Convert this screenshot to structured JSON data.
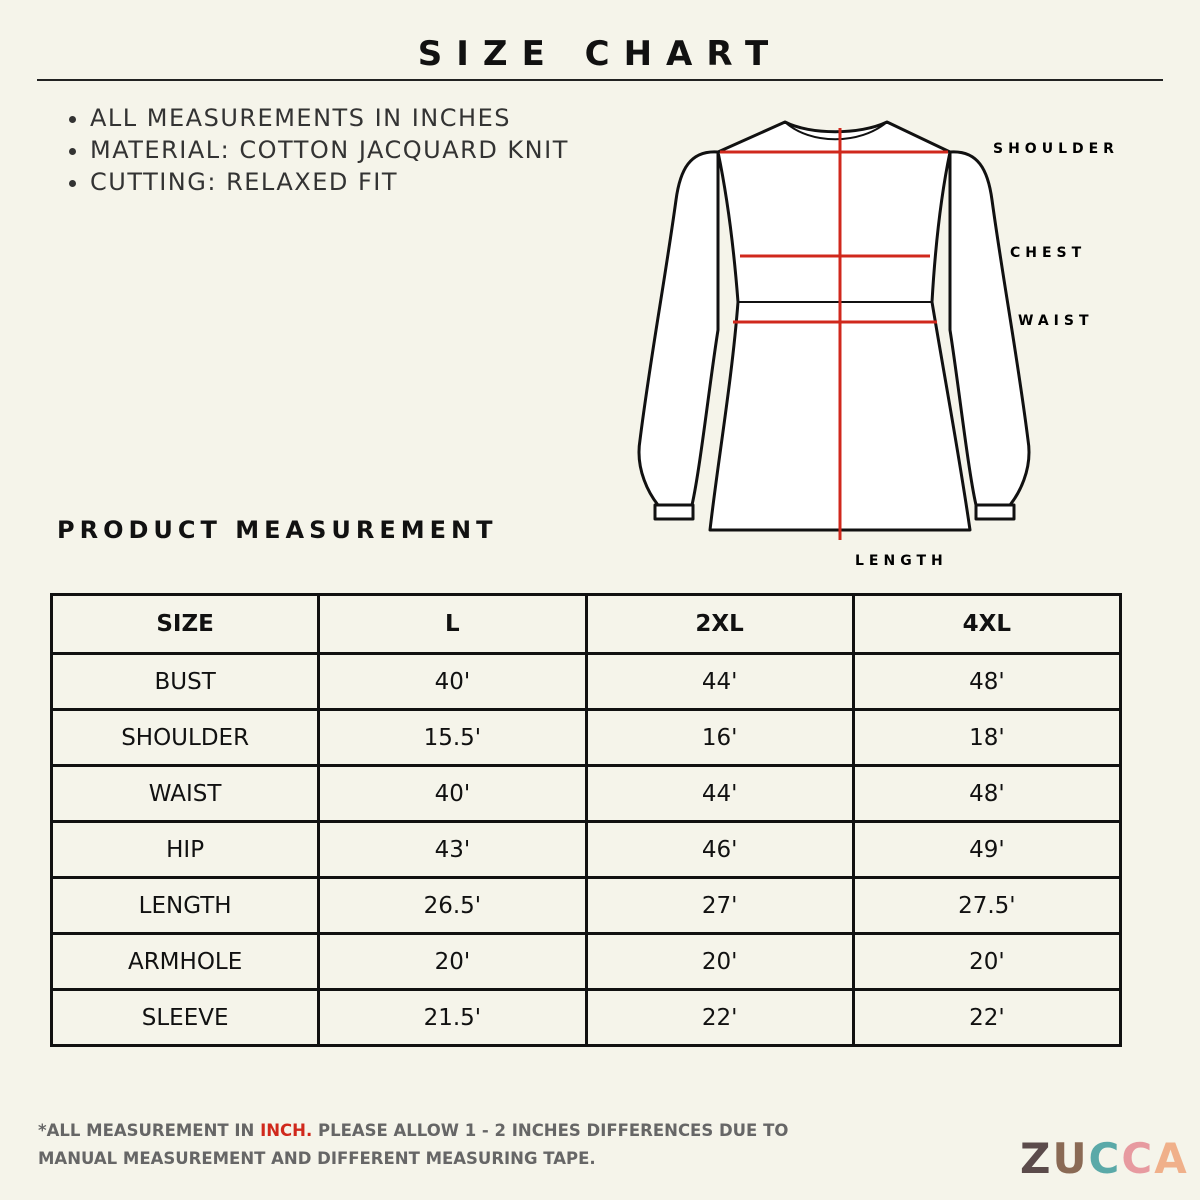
{
  "header": {
    "title": "SIZE CHART"
  },
  "notes": [
    "ALL MEASUREMENTS IN INCHES",
    "MATERIAL: COTTON JACQUARD KNIT",
    "CUTTING: RELAXED FIT"
  ],
  "diagram": {
    "labels": {
      "shoulder": "SHOULDER",
      "chest": "CHEST",
      "waist": "WAIST",
      "length": "LENGTH"
    }
  },
  "section_title": "PRODUCT MEASUREMENT",
  "table": {
    "header": [
      "SIZE",
      "L",
      "2XL",
      "4XL"
    ],
    "rows": [
      [
        "BUST",
        "40'",
        "44'",
        "48'"
      ],
      [
        "SHOULDER",
        "15.5'",
        "16'",
        "18'"
      ],
      [
        "WAIST",
        "40'",
        "44'",
        "48'"
      ],
      [
        "HIP",
        "43'",
        "46'",
        "49'"
      ],
      [
        "LENGTH",
        "26.5'",
        "27'",
        "27.5'"
      ],
      [
        "ARMHOLE",
        "20'",
        "20'",
        "20'"
      ],
      [
        "SLEEVE",
        "21.5'",
        "22'",
        "22'"
      ]
    ]
  },
  "footnote": {
    "before": "*ALL MEASUREMENT IN ",
    "highlight": "INCH.",
    "after": " PLEASE ALLOW 1 - 2 INCHES DIFFERENCES DUE TO MANUAL MEASUREMENT AND DIFFERENT MEASURING TAPE."
  },
  "logo": "ZUCCA"
}
